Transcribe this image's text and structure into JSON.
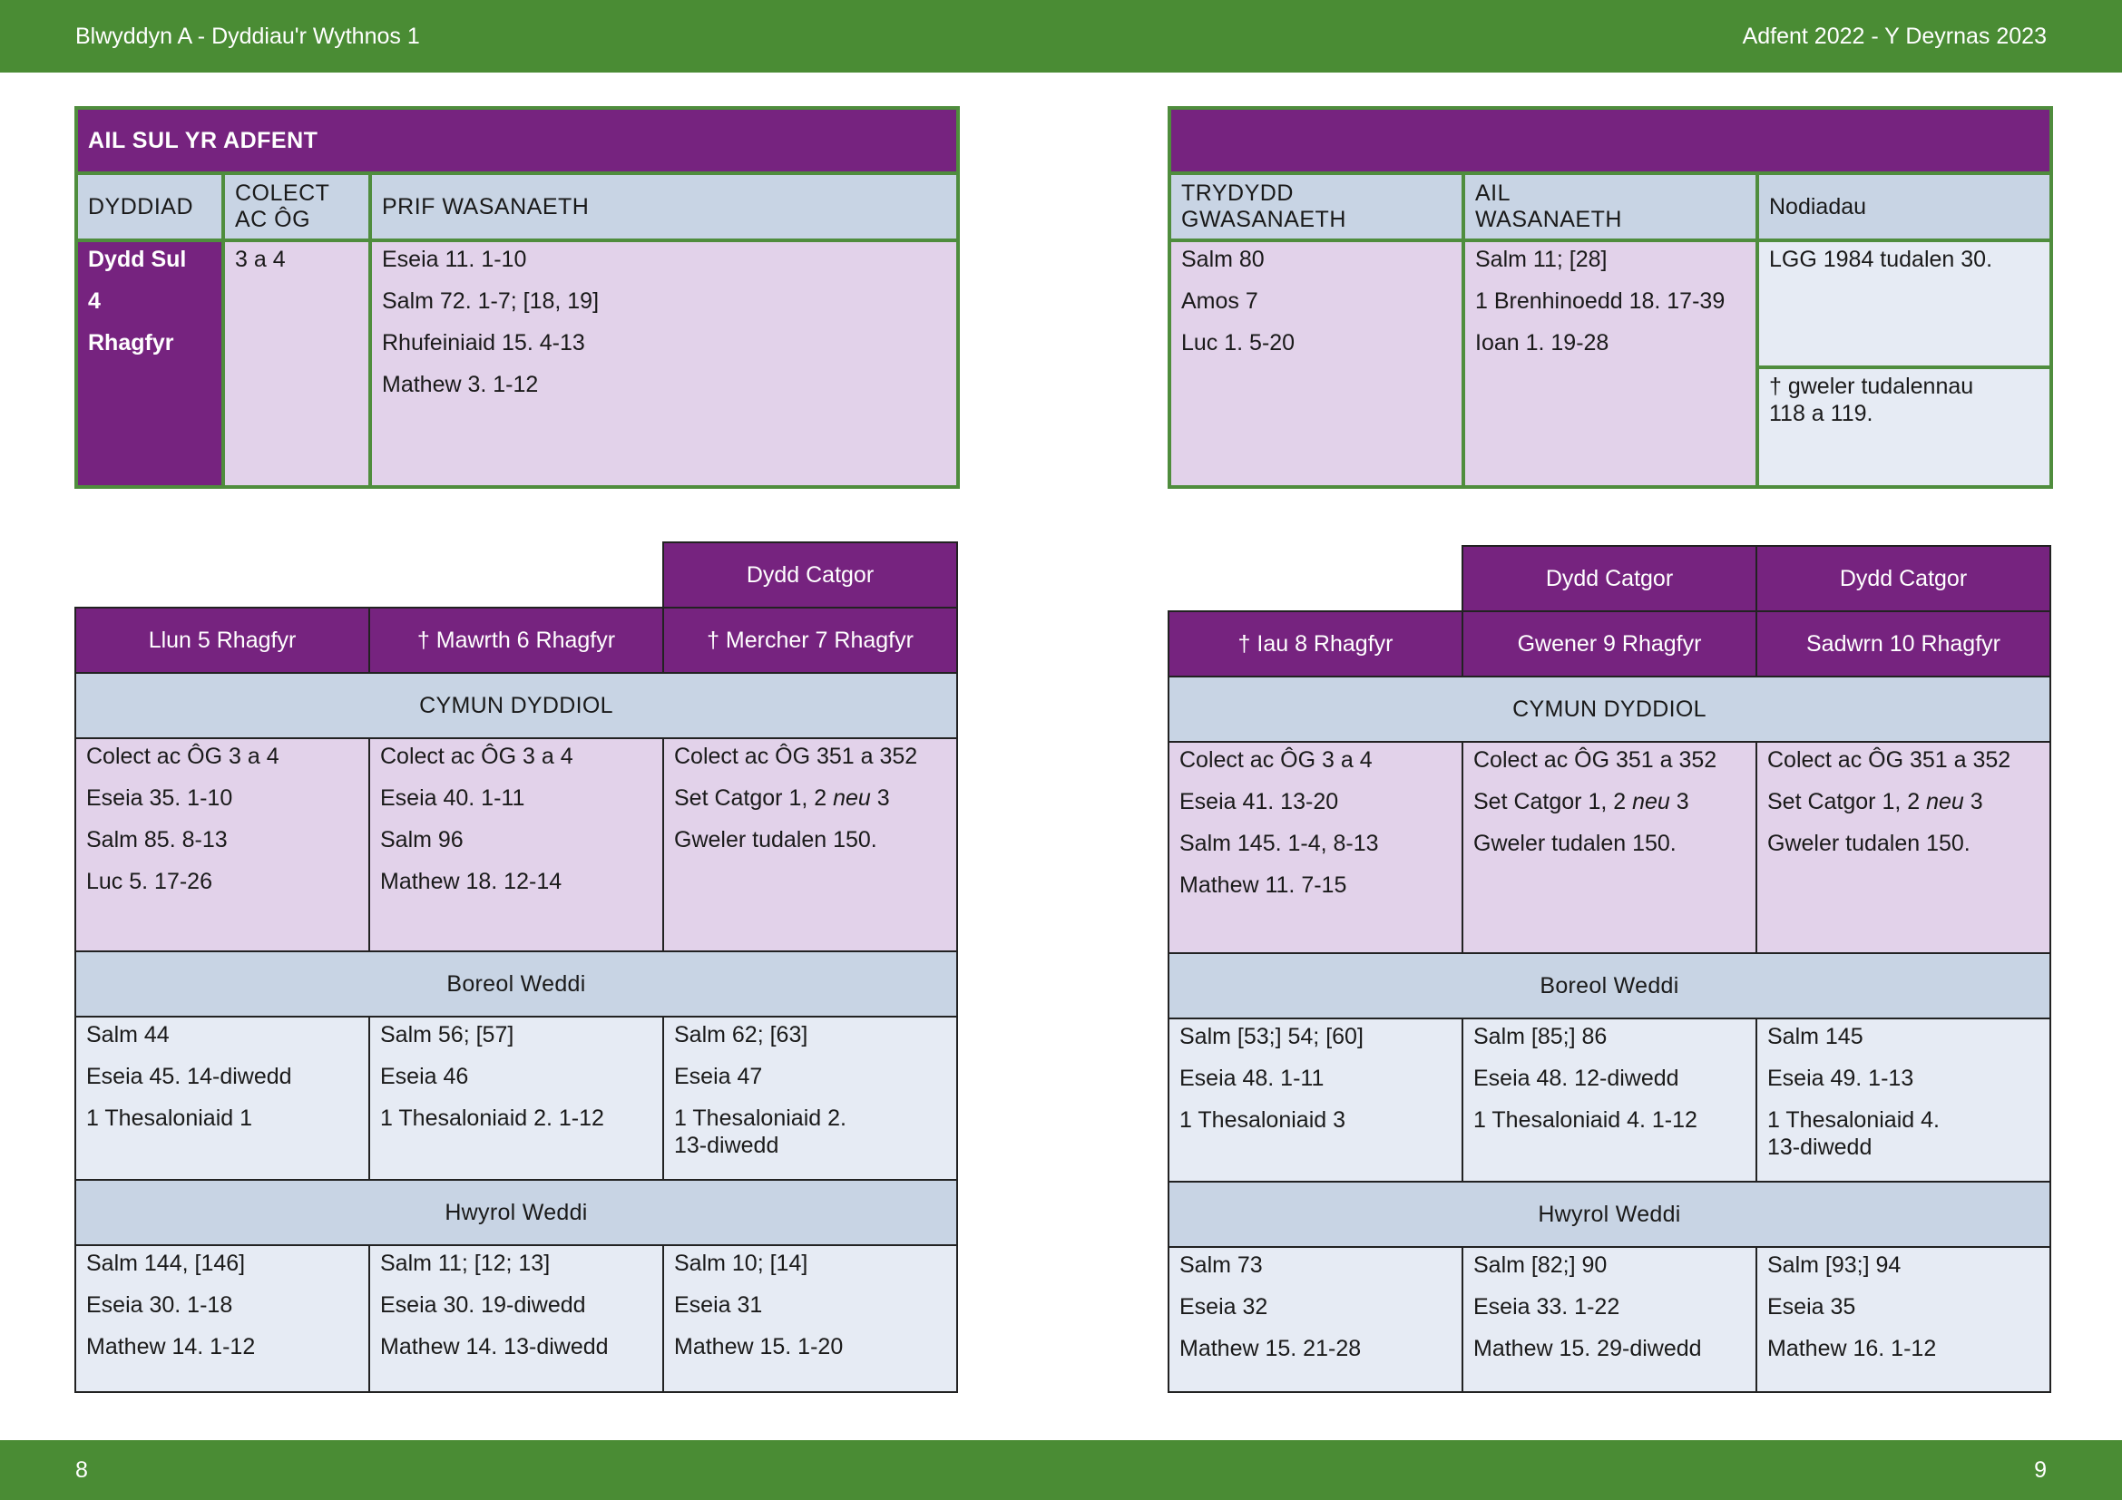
{
  "header": {
    "left": "Blwyddyn  A - Dyddiau'r Wythnos 1",
    "right": "Adfent  2022 - Y Deyrnas 2023"
  },
  "footer": {
    "left_page": "8",
    "right_page": "9"
  },
  "sunday": {
    "title": "AIL SUL YR ADFENT",
    "headers": {
      "date": "DYDDIAD",
      "collect": [
        "COLECT",
        "AC ÔG"
      ],
      "main": "PRIF WASANAETH",
      "third": [
        "TRYDYDD",
        "GWASANAETH"
      ],
      "second": [
        "AIL",
        "WASANAETH"
      ],
      "notes": "Nodiadau"
    },
    "date_lines": [
      "Dydd Sul",
      "4",
      "Rhagfyr"
    ],
    "collect": "3 a 4",
    "main": [
      "Eseia 11. 1-10",
      "Salm 72. 1-7; [18, 19]",
      "Rhufeiniaid 15. 4-13",
      "Mathew 3. 1-12"
    ],
    "third": [
      "Salm 80",
      "Amos 7",
      "Luc 1. 5-20"
    ],
    "second": [
      "Salm 11; [28]",
      "1 Brenhinoedd 18. 17-39",
      "Ioan 1. 19-28"
    ],
    "note1": "LGG 1984 tudalen 30.",
    "note2": [
      "† gweler tudalennau",
      "118 a 119."
    ]
  },
  "week_left": {
    "catgor_label": "Dydd Catgor",
    "days": [
      "Llun 5 Rhagfyr",
      "† Mawrth 6 Rhagfyr",
      "† Mercher 7 Rhagfyr"
    ],
    "sections": {
      "communion": "CYMUN DYDDIOL",
      "morning": "Boreol Weddi",
      "evening": "Hwyrol Weddi"
    },
    "communion": [
      [
        "Colect ac ÔG 3 a 4",
        "Eseia 35. 1-10",
        "Salm 85. 8-13",
        "Luc 5. 17-26"
      ],
      [
        "Colect ac ÔG 3 a 4",
        "Eseia 40. 1-11",
        "Salm 96",
        "Mathew 18. 12-14"
      ],
      [
        "Colect ac ÔG 351 a 352",
        "Set Catgor 1, 2 ",
        "neu",
        " 3",
        "Gweler tudalen 150."
      ]
    ],
    "morning": [
      [
        "Salm 44",
        "Eseia 45. 14-diwedd",
        "1 Thesaloniaid 1"
      ],
      [
        "Salm 56; [57]",
        "Eseia 46",
        "1 Thesaloniaid 2. 1-12"
      ],
      [
        "Salm 62; [63]",
        "Eseia 47",
        "1 Thesaloniaid 2.",
        "13-diwedd"
      ]
    ],
    "evening": [
      [
        "Salm 144, [146]",
        "Eseia 30. 1-18",
        "Mathew 14. 1-12"
      ],
      [
        "Salm 11; [12; 13]",
        "Eseia 30. 19-diwedd",
        "Mathew 14. 13-diwedd"
      ],
      [
        "Salm 10; [14]",
        "Eseia 31",
        "Mathew 15. 1-20"
      ]
    ]
  },
  "week_right": {
    "catgor_label": "Dydd Catgor",
    "days": [
      "† Iau 8 Rhagfyr",
      "Gwener 9 Rhagfyr",
      "Sadwrn 10 Rhagfyr"
    ],
    "sections": {
      "communion": "CYMUN DYDDIOL",
      "morning": "Boreol Weddi",
      "evening": "Hwyrol Weddi"
    },
    "communion": [
      [
        "Colect ac ÔG 3 a 4",
        "Eseia 41. 13-20",
        "Salm 145. 1-4, 8-13",
        "Mathew 11. 7-15"
      ],
      [
        "Colect ac ÔG 351 a 352",
        "Set Catgor 1, 2 ",
        "neu",
        " 3",
        "Gweler tudalen 150."
      ],
      [
        "Colect ac ÔG 351 a 352",
        "Set Catgor 1, 2 ",
        "neu",
        " 3",
        "Gweler tudalen 150."
      ]
    ],
    "morning": [
      [
        "Salm [53;] 54; [60]",
        "Eseia 48. 1-11",
        "1 Thesaloniaid 3"
      ],
      [
        "Salm [85;] 86",
        "Eseia 48. 12-diwedd",
        "1 Thesaloniaid 4. 1-12"
      ],
      [
        "Salm 145",
        "Eseia 49. 1-13",
        "1 Thesaloniaid 4.",
        "13-diwedd"
      ]
    ],
    "evening": [
      [
        "Salm 73",
        "Eseia 32",
        "Mathew 15. 21-28"
      ],
      [
        "Salm [82;] 90",
        "Eseia 33. 1-22",
        "Mathew 15. 29-diwedd"
      ],
      [
        "Salm [93;] 94",
        "Eseia 35",
        "Mathew 16. 1-12"
      ]
    ]
  }
}
